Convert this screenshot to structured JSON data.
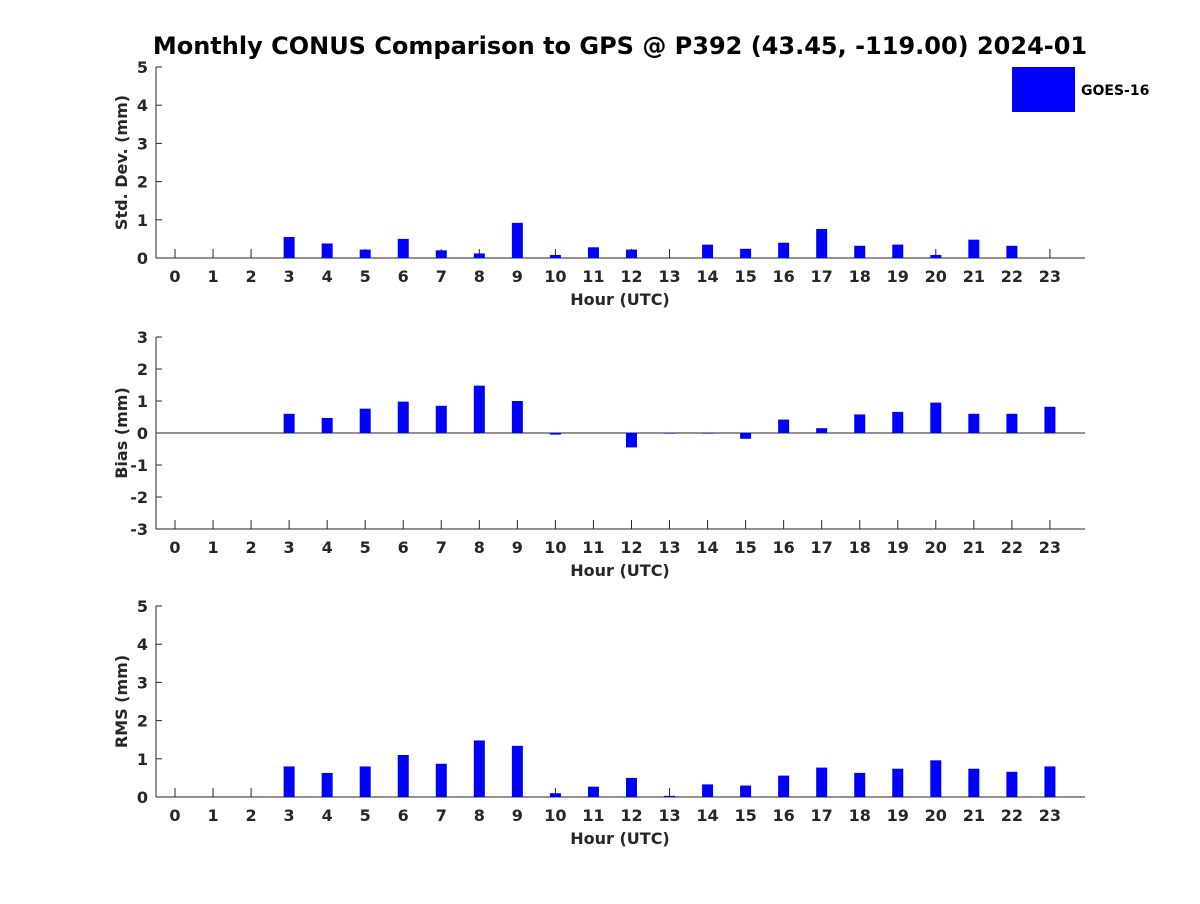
{
  "title": "Monthly CONUS Comparison to GPS @ P392 (43.45, -119.00) 2024-01",
  "legend": {
    "label": "GOES-16",
    "color": "#0000ff",
    "placement": "top-right"
  },
  "chart_data": [
    {
      "type": "bar",
      "name": "std-dev",
      "xlabel": "Hour (UTC)",
      "ylabel": "Std. Dev. (mm)",
      "ylim": [
        0,
        5
      ],
      "yticks": [
        "0",
        "1",
        "2",
        "3",
        "4",
        "5"
      ],
      "categories": [
        "0",
        "1",
        "2",
        "3",
        "4",
        "5",
        "6",
        "7",
        "8",
        "9",
        "10",
        "11",
        "12",
        "13",
        "14",
        "15",
        "16",
        "17",
        "18",
        "19",
        "20",
        "21",
        "22",
        "23"
      ],
      "series": [
        {
          "name": "GOES-16",
          "values": [
            0,
            0,
            0,
            0.55,
            0.38,
            0.22,
            0.5,
            0.2,
            0.12,
            0.92,
            0.08,
            0.28,
            0.22,
            0,
            0.35,
            0.24,
            0.4,
            0.76,
            0.32,
            0.35,
            0.08,
            0.48,
            0.32,
            0
          ]
        }
      ]
    },
    {
      "type": "bar",
      "name": "bias",
      "xlabel": "Hour (UTC)",
      "ylabel": "Bias (mm)",
      "ylim": [
        -3,
        3
      ],
      "yticks": [
        "-3",
        "-2",
        "-1",
        "0",
        "1",
        "2",
        "3"
      ],
      "categories": [
        "0",
        "1",
        "2",
        "3",
        "4",
        "5",
        "6",
        "7",
        "8",
        "9",
        "10",
        "11",
        "12",
        "13",
        "14",
        "15",
        "16",
        "17",
        "18",
        "19",
        "20",
        "21",
        "22",
        "23"
      ],
      "series": [
        {
          "name": "GOES-16",
          "values": [
            0,
            0,
            0,
            0.6,
            0.47,
            0.76,
            0.98,
            0.85,
            1.48,
            1.0,
            -0.05,
            0,
            -0.45,
            -0.02,
            -0.02,
            -0.18,
            0.42,
            0.15,
            0.58,
            0.66,
            0.95,
            0.6,
            0.6,
            0.82
          ]
        }
      ]
    },
    {
      "type": "bar",
      "name": "rms",
      "xlabel": "Hour (UTC)",
      "ylabel": "RMS (mm)",
      "ylim": [
        0,
        5
      ],
      "yticks": [
        "0",
        "1",
        "2",
        "3",
        "4",
        "5"
      ],
      "categories": [
        "0",
        "1",
        "2",
        "3",
        "4",
        "5",
        "6",
        "7",
        "8",
        "9",
        "10",
        "11",
        "12",
        "13",
        "14",
        "15",
        "16",
        "17",
        "18",
        "19",
        "20",
        "21",
        "22",
        "23"
      ],
      "series": [
        {
          "name": "GOES-16",
          "values": [
            0,
            0,
            0,
            0.8,
            0.63,
            0.8,
            1.1,
            0.87,
            1.48,
            1.34,
            0.1,
            0.27,
            0.5,
            0.03,
            0.33,
            0.3,
            0.56,
            0.77,
            0.63,
            0.74,
            0.96,
            0.74,
            0.66,
            0.8
          ]
        }
      ]
    }
  ]
}
